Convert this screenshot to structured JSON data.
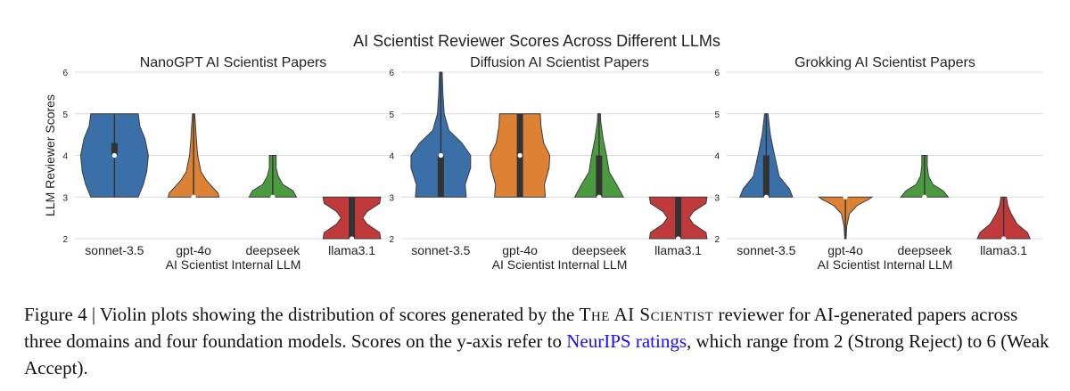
{
  "chart_data": {
    "type": "violin",
    "suptitle": "AI Scientist Reviewer Scores Across Different LLMs",
    "ylabel": "LLM Reviewer Scores",
    "xlabel": "AI Scientist Internal LLM",
    "ylim": [
      2,
      6
    ],
    "yticks": [
      "2",
      "3",
      "4",
      "5",
      "6"
    ],
    "grid": true,
    "categories": [
      "sonnet-3.5",
      "gpt-4o",
      "deepseek",
      "llama3.1"
    ],
    "colors": {
      "sonnet-3.5": "#3a6fa8",
      "gpt-4o": "#dd8235",
      "deepseek": "#4a9a3f",
      "llama3.1": "#c0393b"
    },
    "panels": [
      {
        "title": "NanoGPT AI Scientist Papers",
        "violins": [
          {
            "model": "sonnet-3.5",
            "min": 3,
            "max": 5,
            "median": 4,
            "q1": 4,
            "q3": 4.3,
            "profile": [
              [
                3,
                0.7
              ],
              [
                3.3,
                0.85
              ],
              [
                3.6,
                0.95
              ],
              [
                4,
                1.0
              ],
              [
                4.4,
                0.9
              ],
              [
                4.7,
                0.75
              ],
              [
                5,
                0.7
              ]
            ]
          },
          {
            "model": "gpt-4o",
            "min": 3,
            "max": 5,
            "median": 3,
            "q1": 3,
            "q3": 3,
            "profile": [
              [
                3,
                0.75
              ],
              [
                3.1,
                0.72
              ],
              [
                3.2,
                0.6
              ],
              [
                3.4,
                0.38
              ],
              [
                3.6,
                0.22
              ],
              [
                4,
                0.12
              ],
              [
                4.4,
                0.08
              ],
              [
                4.8,
                0.05
              ],
              [
                5,
                0.03
              ]
            ]
          },
          {
            "model": "deepseek",
            "min": 3,
            "max": 4,
            "median": 3,
            "q1": 3,
            "q3": 3,
            "profile": [
              [
                3,
                0.7
              ],
              [
                3.15,
                0.6
              ],
              [
                3.3,
                0.3
              ],
              [
                3.5,
                0.16
              ],
              [
                3.7,
                0.1
              ],
              [
                4,
                0.1
              ]
            ]
          },
          {
            "model": "llama3.1",
            "min": 2,
            "max": 3,
            "median": 2,
            "q1": 2,
            "q3": 3,
            "profile": [
              [
                2,
                0.85
              ],
              [
                2.15,
                0.82
              ],
              [
                2.35,
                0.45
              ],
              [
                2.5,
                0.32
              ],
              [
                2.65,
                0.45
              ],
              [
                2.85,
                0.82
              ],
              [
                3,
                0.85
              ]
            ]
          }
        ]
      },
      {
        "title": "Diffusion AI Scientist Papers",
        "violins": [
          {
            "model": "sonnet-3.5",
            "min": 3,
            "max": 6,
            "median": 4,
            "q1": 3,
            "q3": 4,
            "profile": [
              [
                3,
                0.75
              ],
              [
                3.3,
                0.72
              ],
              [
                3.7,
                0.88
              ],
              [
                4,
                0.88
              ],
              [
                4.3,
                0.62
              ],
              [
                4.6,
                0.24
              ],
              [
                5,
                0.1
              ],
              [
                5.5,
                0.06
              ],
              [
                6,
                0.04
              ]
            ]
          },
          {
            "model": "gpt-4o",
            "min": 3,
            "max": 5,
            "median": 4,
            "q1": 3,
            "q3": 5,
            "profile": [
              [
                3,
                0.75
              ],
              [
                3.3,
                0.72
              ],
              [
                3.7,
                0.86
              ],
              [
                4,
                0.88
              ],
              [
                4.3,
                0.7
              ],
              [
                4.7,
                0.62
              ],
              [
                5,
                0.6
              ]
            ]
          },
          {
            "model": "deepseek",
            "min": 3,
            "max": 5,
            "median": 3,
            "q1": 3,
            "q3": 4,
            "profile": [
              [
                3,
                0.72
              ],
              [
                3.3,
                0.52
              ],
              [
                3.6,
                0.3
              ],
              [
                4,
                0.22
              ],
              [
                4.4,
                0.12
              ],
              [
                4.8,
                0.05
              ],
              [
                5,
                0.04
              ]
            ]
          },
          {
            "model": "llama3.1",
            "min": 2,
            "max": 3,
            "median": 2,
            "q1": 2,
            "q3": 3,
            "profile": [
              [
                2,
                0.85
              ],
              [
                2.15,
                0.82
              ],
              [
                2.35,
                0.45
              ],
              [
                2.5,
                0.32
              ],
              [
                2.65,
                0.45
              ],
              [
                2.85,
                0.82
              ],
              [
                3,
                0.85
              ]
            ]
          }
        ]
      },
      {
        "title": "Grokking AI Scientist Papers",
        "violins": [
          {
            "model": "sonnet-3.5",
            "min": 3,
            "max": 5,
            "median": 3,
            "q1": 3,
            "q3": 4,
            "profile": [
              [
                3,
                0.78
              ],
              [
                3.2,
                0.68
              ],
              [
                3.5,
                0.38
              ],
              [
                3.8,
                0.3
              ],
              [
                4.1,
                0.22
              ],
              [
                4.5,
                0.12
              ],
              [
                5,
                0.05
              ]
            ]
          },
          {
            "model": "gpt-4o",
            "min": 2,
            "max": 3,
            "median": 3,
            "q1": 3,
            "q3": 3,
            "profile": [
              [
                2,
                0.02
              ],
              [
                2.3,
                0.04
              ],
              [
                2.6,
                0.12
              ],
              [
                2.8,
                0.35
              ],
              [
                2.95,
                0.7
              ],
              [
                3,
                0.78
              ]
            ]
          },
          {
            "model": "deepseek",
            "min": 3,
            "max": 4,
            "median": 3,
            "q1": 3,
            "q3": 3,
            "profile": [
              [
                3,
                0.7
              ],
              [
                3.15,
                0.55
              ],
              [
                3.3,
                0.25
              ],
              [
                3.5,
                0.12
              ],
              [
                3.75,
                0.08
              ],
              [
                4,
                0.08
              ]
            ]
          },
          {
            "model": "llama3.1",
            "min": 2,
            "max": 3,
            "median": 2,
            "q1": 2,
            "q3": 2,
            "profile": [
              [
                2,
                0.78
              ],
              [
                2.15,
                0.7
              ],
              [
                2.35,
                0.4
              ],
              [
                2.6,
                0.22
              ],
              [
                2.8,
                0.12
              ],
              [
                3,
                0.08
              ]
            ]
          }
        ]
      }
    ]
  },
  "caption": {
    "lead": "Figure 4 | Violin plots showing the distribution of scores generated by the ",
    "name": "The AI Scientist",
    "mid": " reviewer for AI-generated papers across three domains and four foundation models. Scores on the y-axis refer to ",
    "link": "NeurIPS ratings",
    "tail": ", which range from 2 (Strong Reject) to 6 (Weak Accept)."
  }
}
